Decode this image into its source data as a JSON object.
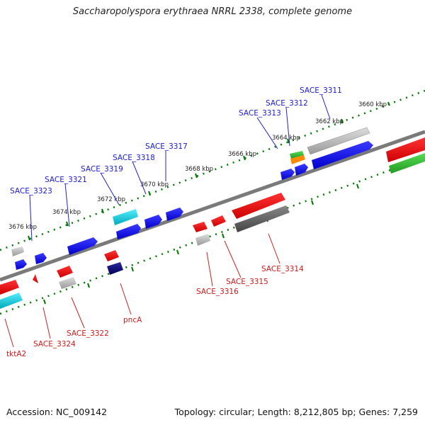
{
  "title": "Saccharopolyspora erythraea NRRL 2338, complete genome",
  "accession": "Accession: NC_009142",
  "topology": "Topology: circular; Length: 8,212,805 bp; Genes: 7,259",
  "colors": {
    "forward": "#0000ee",
    "reverse": "#ee0000",
    "rna": "#00bbcc",
    "pseudo": "#aaaaaa",
    "dark_gene": "#000077",
    "ticks": "#007700",
    "backbone": "#888888",
    "upper_label": "#1a1ad4",
    "lower_label": "#d01a1a"
  },
  "scale_ticks": [
    "3660 kbp",
    "3662 kbp",
    "3664 kbp",
    "3666 kbp",
    "3668 kbp",
    "3670 kbp",
    "3672 kbp",
    "3674 kbp",
    "3676 kbp"
  ],
  "upper_labels": [
    "SACE_3311",
    "SACE_3312",
    "SACE_3313",
    "SACE_3317",
    "SACE_3318",
    "SACE_3319",
    "SACE_3321",
    "SACE_3323"
  ],
  "lower_labels": [
    "SACE_3314",
    "SACE_3315",
    "SACE_3316",
    "pncA",
    "SACE_3322",
    "SACE_3324",
    "tktA2"
  ]
}
